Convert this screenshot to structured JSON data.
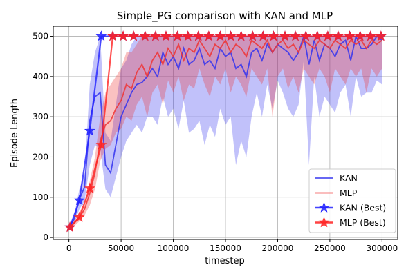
{
  "chart_data": {
    "type": "line",
    "title": "Simple_PG comparison with KAN and MLP",
    "xlabel": "timestep",
    "ylabel": "Episode Length",
    "xlim": [
      -15000,
      315000
    ],
    "ylim": [
      -5,
      525
    ],
    "xticks": [
      0,
      50000,
      100000,
      150000,
      200000,
      250000,
      300000
    ],
    "xtick_labels": [
      "0",
      "50000",
      "100000",
      "150000",
      "200000",
      "250000",
      "300000"
    ],
    "yticks": [
      0,
      100,
      200,
      300,
      400,
      500
    ],
    "ytick_labels": [
      "0",
      "100",
      "200",
      "300",
      "400",
      "500"
    ],
    "grid": true,
    "legend_position": "bottom-right",
    "series": [
      {
        "name": "KAN",
        "color": "#3333ee",
        "style": "line-with-band",
        "x": [
          0,
          5000,
          10000,
          15000,
          20000,
          25000,
          30000,
          35000,
          40000,
          45000,
          50000,
          55000,
          60000,
          65000,
          70000,
          75000,
          80000,
          85000,
          90000,
          95000,
          100000,
          105000,
          110000,
          115000,
          120000,
          125000,
          130000,
          135000,
          140000,
          145000,
          150000,
          155000,
          160000,
          165000,
          170000,
          175000,
          180000,
          185000,
          190000,
          195000,
          200000,
          205000,
          210000,
          215000,
          220000,
          225000,
          230000,
          235000,
          240000,
          245000,
          250000,
          255000,
          260000,
          265000,
          270000,
          275000,
          280000,
          285000,
          290000,
          295000,
          300000
        ],
        "values": [
          25,
          45,
          95,
          125,
          290,
          350,
          360,
          180,
          160,
          230,
          300,
          330,
          360,
          380,
          385,
          400,
          420,
          400,
          460,
          430,
          450,
          420,
          470,
          430,
          440,
          470,
          430,
          440,
          420,
          470,
          450,
          460,
          420,
          430,
          400,
          460,
          470,
          440,
          480,
          460,
          480,
          470,
          460,
          440,
          460,
          500,
          430,
          490,
          440,
          480,
          470,
          450,
          480,
          490,
          440,
          500,
          470,
          470,
          480,
          500,
          490
        ],
        "lower": [
          20,
          35,
          70,
          90,
          180,
          230,
          220,
          120,
          100,
          150,
          200,
          240,
          260,
          280,
          260,
          300,
          300,
          280,
          350,
          300,
          320,
          270,
          340,
          260,
          270,
          290,
          230,
          280,
          250,
          320,
          280,
          300,
          180,
          240,
          200,
          300,
          360,
          300,
          380,
          320,
          390,
          360,
          320,
          300,
          330,
          440,
          180,
          400,
          300,
          350,
          330,
          310,
          360,
          380,
          300,
          400,
          350,
          360,
          360,
          390,
          380
        ],
        "upper": [
          30,
          55,
          120,
          160,
          380,
          460,
          500,
          260,
          240,
          330,
          420,
          440,
          480,
          500,
          500,
          500,
          500,
          500,
          500,
          500,
          500,
          500,
          500,
          500,
          500,
          500,
          500,
          500,
          500,
          500,
          500,
          500,
          500,
          500,
          500,
          500,
          500,
          500,
          500,
          500,
          500,
          500,
          500,
          500,
          500,
          500,
          500,
          500,
          500,
          500,
          500,
          500,
          500,
          500,
          500,
          500,
          500,
          500,
          500,
          500,
          500
        ]
      },
      {
        "name": "MLP",
        "color": "#ee3333",
        "style": "line-with-band",
        "x": [
          0,
          5000,
          10000,
          15000,
          20000,
          25000,
          30000,
          35000,
          40000,
          45000,
          50000,
          55000,
          60000,
          65000,
          70000,
          75000,
          80000,
          85000,
          90000,
          95000,
          100000,
          105000,
          110000,
          115000,
          120000,
          125000,
          130000,
          135000,
          140000,
          145000,
          150000,
          155000,
          160000,
          165000,
          170000,
          175000,
          180000,
          185000,
          190000,
          195000,
          200000,
          205000,
          210000,
          215000,
          220000,
          225000,
          230000,
          235000,
          240000,
          245000,
          250000,
          255000,
          260000,
          265000,
          270000,
          275000,
          280000,
          285000,
          290000,
          295000,
          300000
        ],
        "values": [
          25,
          35,
          50,
          70,
          110,
          160,
          240,
          280,
          290,
          320,
          340,
          380,
          370,
          410,
          430,
          400,
          440,
          460,
          430,
          470,
          450,
          480,
          440,
          470,
          460,
          490,
          470,
          450,
          480,
          470,
          490,
          460,
          480,
          470,
          450,
          490,
          480,
          470,
          490,
          460,
          480,
          490,
          470,
          480,
          460,
          490,
          480,
          470,
          490,
          480,
          470,
          490,
          480,
          470,
          490,
          480,
          490,
          470,
          490,
          480,
          490
        ],
        "lower": [
          20,
          28,
          40,
          55,
          80,
          120,
          190,
          220,
          230,
          260,
          270,
          300,
          290,
          330,
          350,
          300,
          360,
          380,
          330,
          390,
          360,
          400,
          340,
          380,
          370,
          420,
          380,
          350,
          400,
          380,
          420,
          360,
          400,
          380,
          350,
          420,
          400,
          380,
          420,
          300,
          400,
          420,
          370,
          400,
          360,
          420,
          400,
          380,
          420,
          400,
          360,
          420,
          400,
          380,
          420,
          400,
          420,
          360,
          420,
          400,
          420
        ],
        "upper": [
          30,
          42,
          62,
          88,
          140,
          200,
          300,
          360,
          380,
          400,
          420,
          460,
          460,
          480,
          500,
          500,
          500,
          500,
          500,
          500,
          500,
          500,
          500,
          500,
          500,
          500,
          500,
          500,
          500,
          500,
          500,
          500,
          500,
          500,
          500,
          500,
          500,
          500,
          500,
          500,
          500,
          500,
          500,
          500,
          500,
          500,
          500,
          500,
          500,
          500,
          500,
          500,
          500,
          500,
          500,
          500,
          500,
          500,
          500,
          500,
          500
        ]
      },
      {
        "name": "KAN (Best)",
        "color": "#2222ff",
        "style": "line-star",
        "x": [
          1000,
          10000,
          20000,
          31000,
          42000,
          52000,
          62000,
          73000,
          83000,
          93000,
          104000,
          114000,
          124000,
          134000,
          145000,
          155000,
          165000,
          176000,
          186000,
          196000,
          207000,
          217000,
          227000,
          238000,
          248000,
          258000,
          269000,
          279000,
          289000,
          299000
        ],
        "values": [
          25,
          92,
          265,
          500,
          500,
          500,
          500,
          500,
          500,
          500,
          500,
          500,
          500,
          500,
          500,
          500,
          500,
          500,
          500,
          500,
          500,
          500,
          500,
          500,
          500,
          500,
          500,
          500,
          500,
          500
        ]
      },
      {
        "name": "MLP (Best)",
        "color": "#ff2222",
        "style": "line-star",
        "x": [
          1000,
          10000,
          20000,
          31000,
          42000,
          52000,
          62000,
          73000,
          83000,
          93000,
          104000,
          114000,
          124000,
          134000,
          145000,
          155000,
          165000,
          176000,
          186000,
          196000,
          207000,
          217000,
          227000,
          238000,
          248000,
          258000,
          269000,
          279000,
          289000,
          299000
        ],
        "values": [
          25,
          50,
          122,
          230,
          500,
          500,
          500,
          500,
          500,
          500,
          500,
          500,
          500,
          500,
          500,
          500,
          500,
          500,
          500,
          500,
          500,
          500,
          500,
          500,
          500,
          500,
          500,
          500,
          500,
          500
        ]
      }
    ]
  }
}
